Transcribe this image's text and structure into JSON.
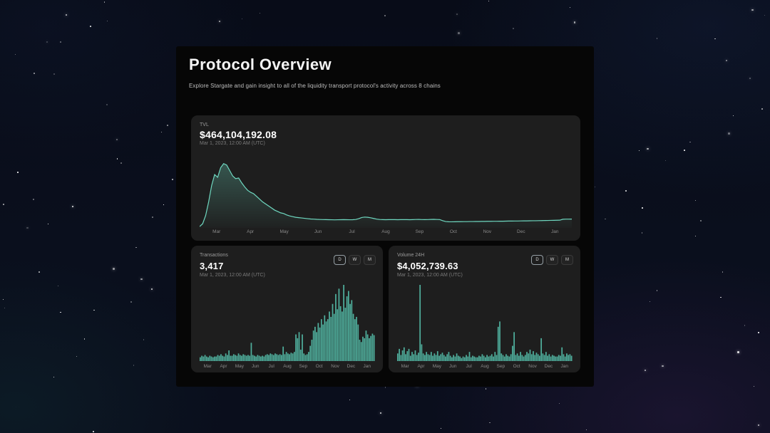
{
  "page": {
    "title": "Protocol Overview",
    "subtitle": "Explore Stargate and gain insight to all of the liquidity transport protocol's activity across 8 chains"
  },
  "colors": {
    "line": "#6fd8c0",
    "line_fill_top": "rgba(111,216,192,0.30)",
    "line_fill_bottom": "rgba(111,216,192,0.02)",
    "bar": "#4fae9c",
    "panel_bg": "#060606",
    "card_bg": "#1e1e1e"
  },
  "cards": {
    "tvl": {
      "label": "TVL",
      "value": "$464,104,192.08",
      "date": "Mar 1, 2023, 12:00 AM (UTC)"
    },
    "transactions": {
      "label": "Transactions",
      "value": "3,417",
      "date": "Mar 1, 2023, 12:00 AM (UTC)",
      "range_buttons": {
        "d": "D",
        "w": "W",
        "m": "M"
      },
      "selected_range": "D"
    },
    "volume": {
      "label": "Volume 24H",
      "value": "$4,052,739.63",
      "date": "Mar 1, 2023, 12:00 AM (UTC)",
      "range_buttons": {
        "d": "D",
        "w": "W",
        "m": "M"
      },
      "selected_range": "D"
    }
  },
  "chart_data": [
    {
      "id": "chart-tvl",
      "type": "area",
      "title": "TVL",
      "current_value": "$464,104,192.08",
      "tooltip_date": "Mar 1, 2023, 12:00 AM (UTC)",
      "x_tick_labels": [
        "Mar",
        "Apr",
        "May",
        "Jun",
        "Jul",
        "Aug",
        "Sep",
        "Oct",
        "Nov",
        "Dec",
        "Jan"
      ],
      "yaxis": "none (values normalized 0-100 = fraction of plot height)",
      "ylim": [
        0,
        100
      ],
      "values": [
        2,
        6,
        18,
        38,
        62,
        78,
        74,
        88,
        94,
        92,
        84,
        76,
        72,
        73,
        66,
        60,
        55,
        52,
        50,
        46,
        42,
        38,
        35,
        32,
        29,
        26,
        24,
        22,
        21,
        19,
        17.5,
        16.5,
        15.5,
        15,
        14.5,
        14,
        13.5,
        13,
        12.8,
        12.5,
        12.3,
        12.2,
        12.1,
        12,
        11.9,
        11.8,
        11.9,
        12,
        12.1,
        12,
        11.9,
        12,
        12.3,
        13.5,
        15.2,
        15.8,
        15.5,
        14.8,
        13.8,
        12.8,
        12.3,
        12.1,
        12,
        12.1,
        12.2,
        12.1,
        12,
        12.1,
        12.2,
        12.1,
        12,
        12.1,
        12.3,
        12.4,
        12.2,
        12.1,
        12.2,
        12.4,
        12.5,
        12.3,
        12.2,
        10.5,
        9.3,
        9,
        8.9,
        9,
        9.1,
        9.1,
        9.2,
        9.2,
        9.3,
        9.3,
        9.4,
        9.4,
        9.5,
        9.5,
        9.6,
        9.6,
        9.7,
        9.7,
        9.8,
        9.8,
        9.9,
        10,
        10,
        10.1,
        10.1,
        10.2,
        10.3,
        10.3,
        10.4,
        10.5,
        10.5,
        10.6,
        10.7,
        10.8,
        10.9,
        11,
        11.1,
        11.2,
        11.3,
        12.6,
        12.8,
        12.8,
        12.9
      ]
    },
    {
      "id": "chart-tx",
      "type": "bar",
      "title": "Transactions",
      "current_value": "3,417",
      "tooltip_date": "Mar 1, 2023, 12:00 AM (UTC)",
      "x_tick_labels": [
        "Mar",
        "Apr",
        "May",
        "Jun",
        "Jul",
        "Aug",
        "Sep",
        "Oct",
        "Nov",
        "Dec",
        "Jan"
      ],
      "yaxis": "none (values normalized 0-100 = fraction of plot height)",
      "ylim": [
        0,
        100
      ],
      "values": [
        5,
        7,
        6,
        8,
        6,
        5,
        7,
        6,
        5,
        6,
        6,
        8,
        7,
        9,
        7,
        6,
        10,
        8,
        14,
        7,
        7,
        9,
        8,
        7,
        10,
        8,
        7,
        9,
        8,
        7,
        8,
        7,
        24,
        8,
        7,
        6,
        8,
        7,
        6,
        7,
        6,
        8,
        9,
        8,
        10,
        9,
        8,
        10,
        9,
        8,
        9,
        8,
        19,
        9,
        12,
        10,
        9,
        11,
        10,
        12,
        35,
        30,
        38,
        15,
        35,
        10,
        8,
        9,
        12,
        20,
        28,
        40,
        45,
        38,
        50,
        44,
        55,
        48,
        60,
        52,
        55,
        65,
        58,
        75,
        62,
        88,
        68,
        95,
        72,
        65,
        100,
        70,
        85,
        92,
        75,
        80,
        62,
        55,
        58,
        48,
        28,
        25,
        32,
        30,
        40,
        35,
        30,
        33,
        36,
        34
      ]
    },
    {
      "id": "chart-vol",
      "type": "bar",
      "title": "Volume 24H",
      "current_value": "$4,052,739.63",
      "tooltip_date": "Mar 1, 2023, 12:00 AM (UTC)",
      "x_tick_labels": [
        "Mar",
        "Apr",
        "May",
        "Jun",
        "Jul",
        "Aug",
        "Sep",
        "Oct",
        "Nov",
        "Dec",
        "Jan"
      ],
      "yaxis": "none (values normalized 0-100 = fraction of plot height)",
      "ylim": [
        0,
        100
      ],
      "values": [
        10,
        16,
        8,
        14,
        18,
        9,
        13,
        16,
        7,
        12,
        9,
        14,
        8,
        11,
        100,
        22,
        10,
        8,
        12,
        9,
        8,
        12,
        7,
        10,
        8,
        13,
        7,
        9,
        11,
        8,
        6,
        9,
        12,
        7,
        5,
        8,
        6,
        10,
        7,
        6,
        4,
        6,
        5,
        8,
        6,
        12,
        5,
        7,
        6,
        5,
        5,
        7,
        6,
        9,
        7,
        5,
        8,
        6,
        7,
        9,
        6,
        12,
        8,
        45,
        52,
        10,
        8,
        6,
        9,
        7,
        6,
        9,
        20,
        38,
        8,
        10,
        7,
        12,
        8,
        6,
        8,
        12,
        10,
        15,
        9,
        13,
        8,
        11,
        9,
        7,
        30,
        10,
        8,
        12,
        7,
        9,
        6,
        8,
        7,
        6,
        6,
        8,
        7,
        18,
        9,
        6,
        10,
        8,
        9,
        7
      ]
    }
  ]
}
